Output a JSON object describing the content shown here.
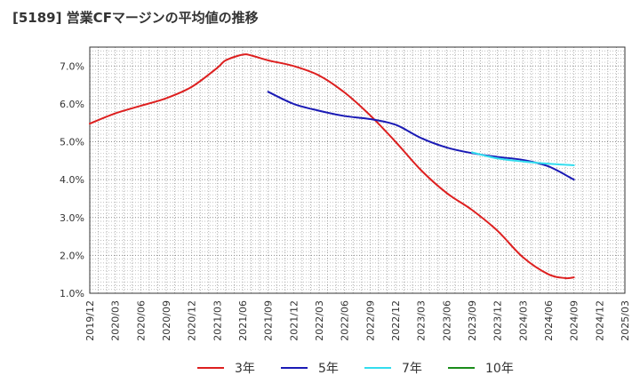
{
  "chart_data": {
    "type": "line",
    "title": "[5189]  営業CFマージンの平均値の推移",
    "xlabel": "",
    "ylabel": "",
    "ylim": [
      1.0,
      7.5
    ],
    "yticks": [
      "1.0%",
      "2.0%",
      "3.0%",
      "4.0%",
      "5.0%",
      "6.0%",
      "7.0%"
    ],
    "yticks_values": [
      1.0,
      2.0,
      3.0,
      4.0,
      5.0,
      6.0,
      7.0
    ],
    "xticks": [
      "2019/12",
      "2020/03",
      "2020/06",
      "2020/09",
      "2020/12",
      "2021/03",
      "2021/06",
      "2021/09",
      "2021/12",
      "2022/03",
      "2022/06",
      "2022/09",
      "2022/12",
      "2023/03",
      "2023/06",
      "2023/09",
      "2023/12",
      "2024/03",
      "2024/06",
      "2024/09",
      "2024/12",
      "2025/03"
    ],
    "grid": true,
    "legend_position": "bottom",
    "series": [
      {
        "name": "3年",
        "color": "#dd1f1f",
        "x": [
          "2019/12",
          "2020/03",
          "2020/06",
          "2020/09",
          "2020/12",
          "2021/03",
          "2021/04",
          "2021/06",
          "2021/07",
          "2021/09",
          "2021/12",
          "2022/03",
          "2022/06",
          "2022/09",
          "2022/12",
          "2023/03",
          "2023/06",
          "2023/09",
          "2023/12",
          "2024/03",
          "2024/06",
          "2024/08",
          "2024/09"
        ],
        "values": [
          5.48,
          5.75,
          5.95,
          6.15,
          6.45,
          6.95,
          7.15,
          7.3,
          7.28,
          7.15,
          7.0,
          6.75,
          6.3,
          5.7,
          5.0,
          4.25,
          3.65,
          3.2,
          2.65,
          1.95,
          1.5,
          1.4,
          1.42
        ]
      },
      {
        "name": "5年",
        "color": "#1a1ab5",
        "x": [
          "2021/09",
          "2021/12",
          "2022/03",
          "2022/06",
          "2022/09",
          "2022/12",
          "2023/03",
          "2023/06",
          "2023/09",
          "2023/12",
          "2024/03",
          "2024/06",
          "2024/09"
        ],
        "values": [
          6.32,
          6.0,
          5.82,
          5.68,
          5.6,
          5.45,
          5.1,
          4.85,
          4.7,
          4.6,
          4.52,
          4.35,
          4.0
        ]
      },
      {
        "name": "7年",
        "color": "#33ddee",
        "x": [
          "2023/09",
          "2023/12",
          "2024/03",
          "2024/06",
          "2024/09"
        ],
        "values": [
          4.72,
          4.56,
          4.48,
          4.42,
          4.38
        ]
      },
      {
        "name": "10年",
        "color": "#1a8c1a",
        "x": [],
        "values": []
      }
    ]
  }
}
